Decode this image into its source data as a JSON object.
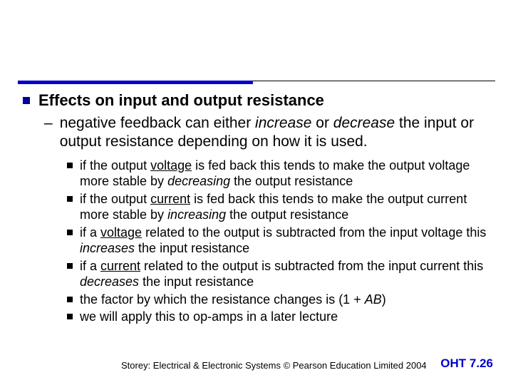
{
  "colors": {
    "accent_blue": "#0000cc",
    "bullet_blue": "#000099",
    "text_black": "#000000",
    "background": "#ffffff"
  },
  "heading": "Effects on input and output resistance",
  "sub": {
    "pre": "negative feedback can either ",
    "i1": "increase",
    "mid": " or ",
    "i2": "decrease",
    "post": " the input  or output resistance depending on how it is used."
  },
  "items": [
    {
      "a": "if the output ",
      "u": "voltage",
      "b": " is fed back this tends to make the output voltage more stable by ",
      "i": "decreasing",
      "c": " the output resistance"
    },
    {
      "a": "if the output ",
      "u": "current",
      "b": " is fed back this tends to make the output current more stable by ",
      "i": "increasing",
      "c": " the output resistance"
    },
    {
      "a": "if a ",
      "u": "voltage",
      "b": " related to the output is subtracted from the input voltage this ",
      "i": "increases",
      "c": " the input resistance"
    },
    {
      "a": "if a ",
      "u": "current",
      "b": " related to the output is subtracted from the input current this ",
      "i": "decreases",
      "c": " the input resistance"
    },
    {
      "a": "the factor by which the resistance changes is (1 + ",
      "u": "",
      "b": "",
      "i": "AB",
      "c": ")"
    },
    {
      "a": "we will apply this to op-amps in a later lecture",
      "u": "",
      "b": "",
      "i": "",
      "c": ""
    }
  ],
  "footer": {
    "credit": "Storey: Electrical & Electronic Systems © Pearson Education Limited 2004",
    "page": "OHT 7.26"
  }
}
